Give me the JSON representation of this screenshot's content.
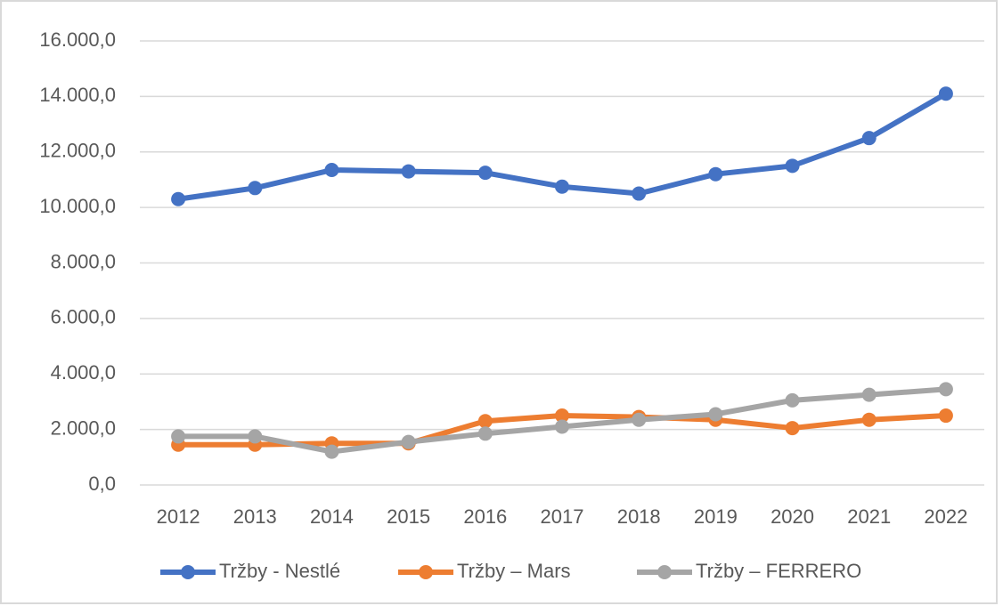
{
  "chart_data": {
    "type": "line",
    "categories": [
      "2012",
      "2013",
      "2014",
      "2015",
      "2016",
      "2017",
      "2018",
      "2019",
      "2020",
      "2021",
      "2022"
    ],
    "series": [
      {
        "name": "Tržby - Nestlé",
        "color": "#4472c4",
        "values": [
          10300,
          10700,
          11350,
          11300,
          11250,
          10750,
          10500,
          11200,
          11500,
          12500,
          14100
        ]
      },
      {
        "name": "Tržby – Mars",
        "color": "#ed7d31",
        "values": [
          1450,
          1450,
          1500,
          1500,
          2300,
          2500,
          2450,
          2350,
          2050,
          2350,
          2500
        ]
      },
      {
        "name": "Tržby – FERRERO",
        "color": "#a5a5a5",
        "values": [
          1750,
          1750,
          1200,
          1550,
          1850,
          2100,
          2350,
          2550,
          3050,
          3250,
          3450
        ]
      }
    ],
    "ylim": [
      0,
      16000
    ],
    "yticks": [
      {
        "value": 0,
        "label": "0,0"
      },
      {
        "value": 2000,
        "label": "2.000,0"
      },
      {
        "value": 4000,
        "label": "4.000,0"
      },
      {
        "value": 6000,
        "label": "6.000,0"
      },
      {
        "value": 8000,
        "label": "8.000,0"
      },
      {
        "value": 10000,
        "label": "10.000,0"
      },
      {
        "value": 12000,
        "label": "12.000,0"
      },
      {
        "value": 14000,
        "label": "14.000,0"
      },
      {
        "value": 16000,
        "label": "16.000,0"
      }
    ],
    "grid": true,
    "legend": "bottom"
  }
}
